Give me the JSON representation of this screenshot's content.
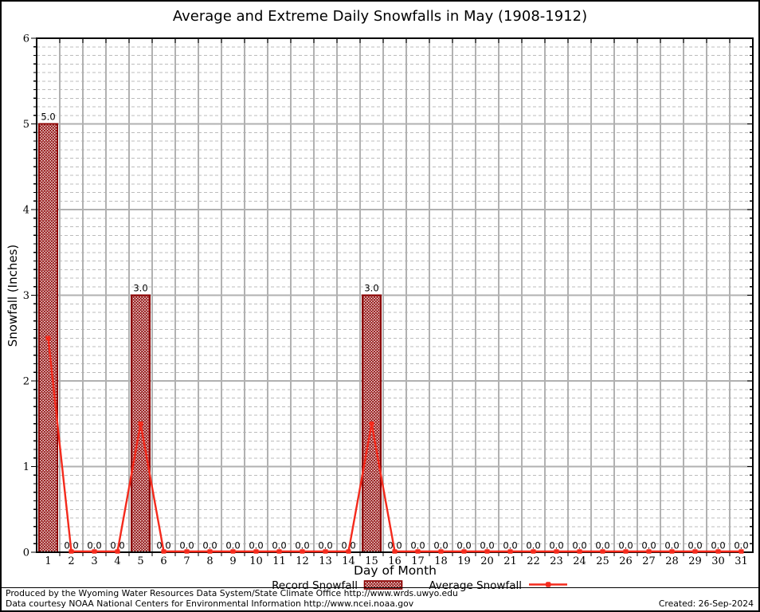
{
  "chart": {
    "title": "Average and Extreme Daily Snowfalls in May (1908-1912)",
    "xlabel": "Day of Month",
    "ylabel": "Snowfall (Inches)"
  },
  "chart_data": {
    "type": "combo",
    "title": "Average and Extreme Daily Snowfalls in May (1908-1912)",
    "xlabel": "Day of Month",
    "ylabel": "Snowfall (Inches)",
    "ylim": [
      0,
      6
    ],
    "ytick_labels": [
      "0",
      "1",
      "2",
      "3",
      "4",
      "5",
      "6"
    ],
    "categories": [
      "1",
      "2",
      "3",
      "4",
      "5",
      "6",
      "7",
      "8",
      "9",
      "10",
      "11",
      "12",
      "13",
      "14",
      "15",
      "16",
      "17",
      "18",
      "19",
      "20",
      "21",
      "22",
      "23",
      "24",
      "25",
      "26",
      "27",
      "28",
      "29",
      "30",
      "31"
    ],
    "grid": {
      "major_horizontal": "solid",
      "minor_horizontal": "dashed 0.1 steps",
      "vertical": "solid at day boundaries"
    },
    "legend_position": "bottom",
    "series": [
      {
        "name": "Record Snowfall",
        "type": "bar",
        "values": [
          5.0,
          0,
          0,
          0,
          3.0,
          0,
          0,
          0,
          0,
          0,
          0,
          0,
          0,
          0,
          3.0,
          0,
          0,
          0,
          0,
          0,
          0,
          0,
          0,
          0,
          0,
          0,
          0,
          0,
          0,
          0,
          0
        ]
      },
      {
        "name": "Average Snowfall",
        "type": "line",
        "values": [
          2.5,
          0,
          0,
          0,
          1.5,
          0,
          0,
          0,
          0,
          0,
          0,
          0,
          0,
          0,
          1.5,
          0,
          0,
          0,
          0,
          0,
          0,
          0,
          0,
          0,
          0,
          0,
          0,
          0,
          0,
          0,
          0
        ]
      }
    ],
    "point_labels": [
      "5.0",
      "0.0",
      "0.0",
      "0.0",
      "3.0",
      "0.0",
      "0.0",
      "0.0",
      "0.0",
      "0.0",
      "0.0",
      "0.0",
      "0.0",
      "0.0",
      "3.0",
      "0.0",
      "0.0",
      "0.0",
      "0.0",
      "0.0",
      "0.0",
      "0.0",
      "0.0",
      "0.0",
      "0.0",
      "0.0",
      "0.0",
      "0.0",
      "0.0",
      "0.0",
      "0.0"
    ]
  },
  "legend": {
    "record_label": "Record Snowfall",
    "average_label": "Average Snowfall"
  },
  "colors": {
    "bar_border": "#8b0000",
    "bar_hatch": "#8b0000",
    "line_red": "#f42a1c",
    "grid_major": "#b1b1b1",
    "grid_minor": "#bcbcbc",
    "axis": "#000000"
  },
  "footer": {
    "line1": "Produced by the Wyoming Water Resources Data System/State Climate Office http://www.wrds.uwyo.edu",
    "line2": "Data courtesy NOAA National Centers for Environmental Information http://www.ncei.noaa.gov",
    "created": "Created: 26-Sep-2024"
  }
}
